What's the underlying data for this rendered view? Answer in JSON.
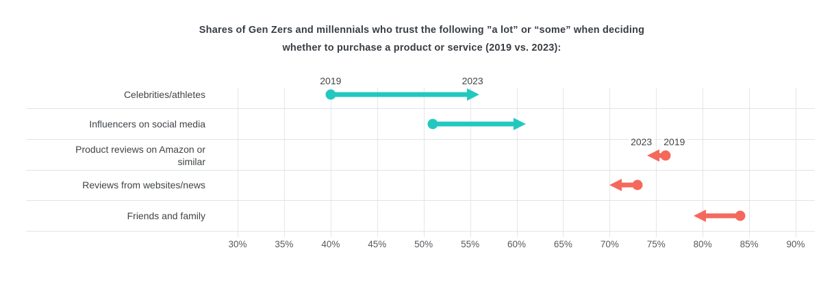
{
  "chart_data": {
    "type": "arrow",
    "title_line1": "Shares of Gen Zers and millennials who trust the following ”a lot” or “some” when deciding",
    "title_line2": "whether to purchase a product or service (2019 vs. 2023):",
    "categories": [
      "Celebrities/athletes",
      "Influencers on social media",
      "Product reviews on Amazon or similar",
      "Reviews from websites/news",
      "Friends and family"
    ],
    "series": [
      {
        "name": "2019",
        "values": [
          40,
          51,
          76,
          73,
          84
        ]
      },
      {
        "name": "2023",
        "values": [
          56,
          61,
          74,
          70,
          79
        ]
      }
    ],
    "x_ticks": [
      30,
      35,
      40,
      45,
      50,
      55,
      60,
      65,
      70,
      75,
      80,
      85,
      90
    ],
    "x_tick_labels": [
      "30%",
      "35%",
      "40%",
      "45%",
      "50%",
      "55%",
      "60%",
      "65%",
      "70%",
      "75%",
      "80%",
      "85%",
      "90%"
    ],
    "xlim": [
      30,
      90
    ],
    "grid": true,
    "legend_position": "inline-year-labels",
    "year_label_rows": [
      0,
      2
    ],
    "start_year_label": "2019",
    "end_year_label": "2023",
    "colors": {
      "increase": "#22c8bf",
      "decrease": "#f4695c",
      "gridline": "#e0e3e6",
      "title_text": "#383d43",
      "label_text": "#3f4347",
      "axis_text": "#55585c"
    }
  }
}
